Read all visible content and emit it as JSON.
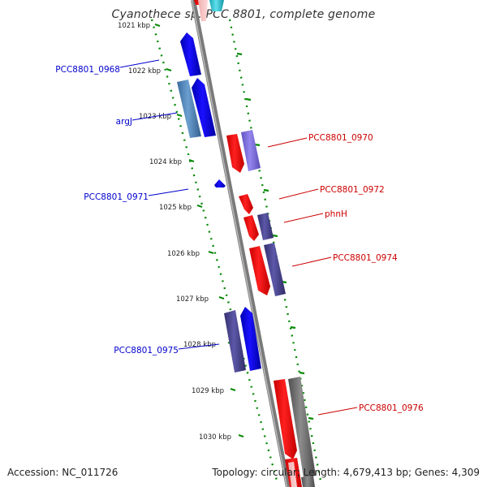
{
  "title": "Cyanothece sp. PCC 8801, complete genome",
  "accession": "Accession: NC_011726",
  "summary": "Topology: circular; Length: 4,679,413 bp; Genes: 4,309",
  "colors": {
    "forward_blue": "#0a00e6",
    "steel_blue": "#4f7fb5",
    "navy": "#46428a",
    "red": "#ff0000",
    "lavender": "#7b6dd6",
    "gray": "#6e6e6e",
    "cyan": "#33c6d4",
    "tick_green": "#0a8a0a",
    "backbone": "#808080"
  },
  "ticks": [
    {
      "label": "1021 kbp"
    },
    {
      "label": "1022 kbp"
    },
    {
      "label": "1023 kbp"
    },
    {
      "label": "1024 kbp"
    },
    {
      "label": "1025 kbp"
    },
    {
      "label": "1026 kbp"
    },
    {
      "label": "1027 kbp"
    },
    {
      "label": "1028 kbp"
    },
    {
      "label": "1029 kbp"
    },
    {
      "label": "1030 kbp"
    }
  ],
  "gene_labels": {
    "left": [
      "PCC8801_0968",
      "argJ",
      "PCC8801_0971",
      "PCC8801_0975"
    ],
    "right": [
      "PCC8801_0970",
      "PCC8801_0972",
      "phnH",
      "PCC8801_0974",
      "PCC8801_0976"
    ]
  }
}
